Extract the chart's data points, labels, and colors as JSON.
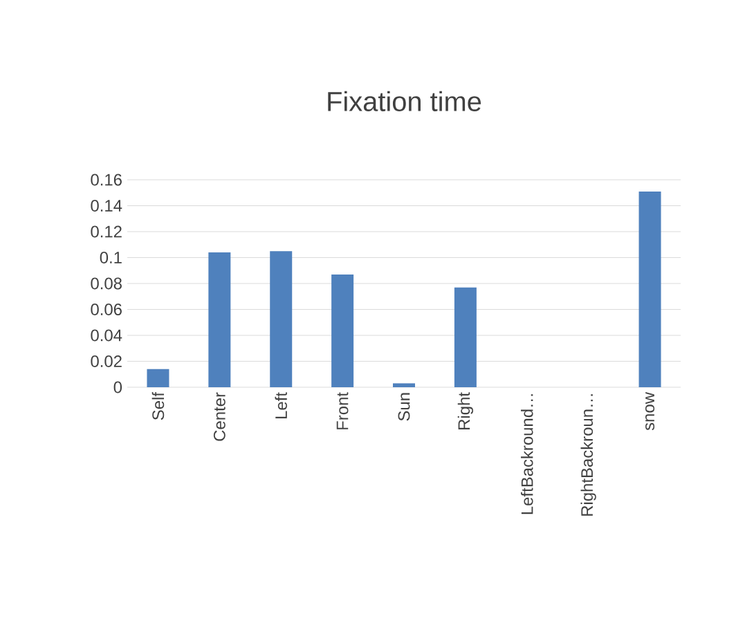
{
  "chart_data": {
    "type": "bar",
    "title": "Fixation time",
    "categories": [
      "Self",
      "Center",
      "Left",
      "Front",
      "Sun",
      "Right",
      "LeftBackround…",
      "RightBackroun…",
      "snow"
    ],
    "values": [
      0.014,
      0.104,
      0.105,
      0.087,
      0.003,
      0.077,
      0,
      0,
      0.151
    ],
    "color": "#4f81bd",
    "ylim": [
      0,
      0.16
    ],
    "yticks": [
      0,
      0.02,
      0.04,
      0.06,
      0.08,
      0.1,
      0.12,
      0.14,
      0.16
    ],
    "grid": "y"
  }
}
